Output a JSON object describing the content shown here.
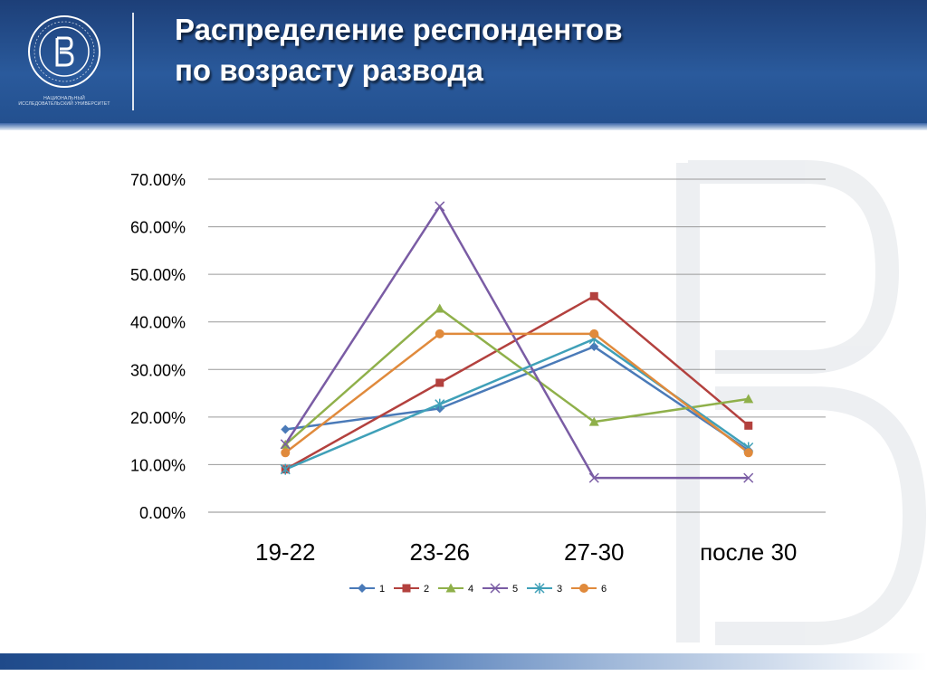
{
  "slide": {
    "title_line1": "Распределение респондентов",
    "title_line2": "по возрасту развода",
    "logo_caption": "НАЦИОНАЛЬНЫЙ ИССЛЕДОВАТЕЛЬСКИЙ УНИВЕРСИТЕТ"
  },
  "colors": {
    "header": "#23508f",
    "series_1": "#4a7ab8",
    "series_2": "#b3413e",
    "series_4": "#8fb04a",
    "series_5": "#7a5ca4",
    "series_3": "#3fa0b8",
    "series_6": "#e08a3c"
  },
  "chart_data": {
    "type": "line",
    "categories": [
      "19-22",
      "23-26",
      "27-30",
      "после 30"
    ],
    "ylim": [
      0,
      0.7
    ],
    "yticks": [
      "0.00%",
      "10.00%",
      "20.00%",
      "30.00%",
      "40.00%",
      "50.00%",
      "60.00%",
      "70.00%"
    ],
    "grid": true,
    "legend": "bottom",
    "series": [
      {
        "name": "1",
        "values": [
          0.174,
          0.218,
          0.348,
          0.13
        ],
        "color": "#4a7ab8",
        "marker": "diamond"
      },
      {
        "name": "2",
        "values": [
          0.09,
          0.272,
          0.454,
          0.182
        ],
        "color": "#b3413e",
        "marker": "square"
      },
      {
        "name": "4",
        "values": [
          0.142,
          0.428,
          0.19,
          0.238
        ],
        "color": "#8fb04a",
        "marker": "triangle"
      },
      {
        "name": "5",
        "values": [
          0.143,
          0.643,
          0.072,
          0.072
        ],
        "color": "#7a5ca4",
        "marker": "x"
      },
      {
        "name": "3",
        "values": [
          0.09,
          0.227,
          0.364,
          0.136
        ],
        "color": "#3fa0b8",
        "marker": "star"
      },
      {
        "name": "6",
        "values": [
          0.125,
          0.375,
          0.375,
          0.125
        ],
        "color": "#e08a3c",
        "marker": "circle"
      }
    ]
  }
}
